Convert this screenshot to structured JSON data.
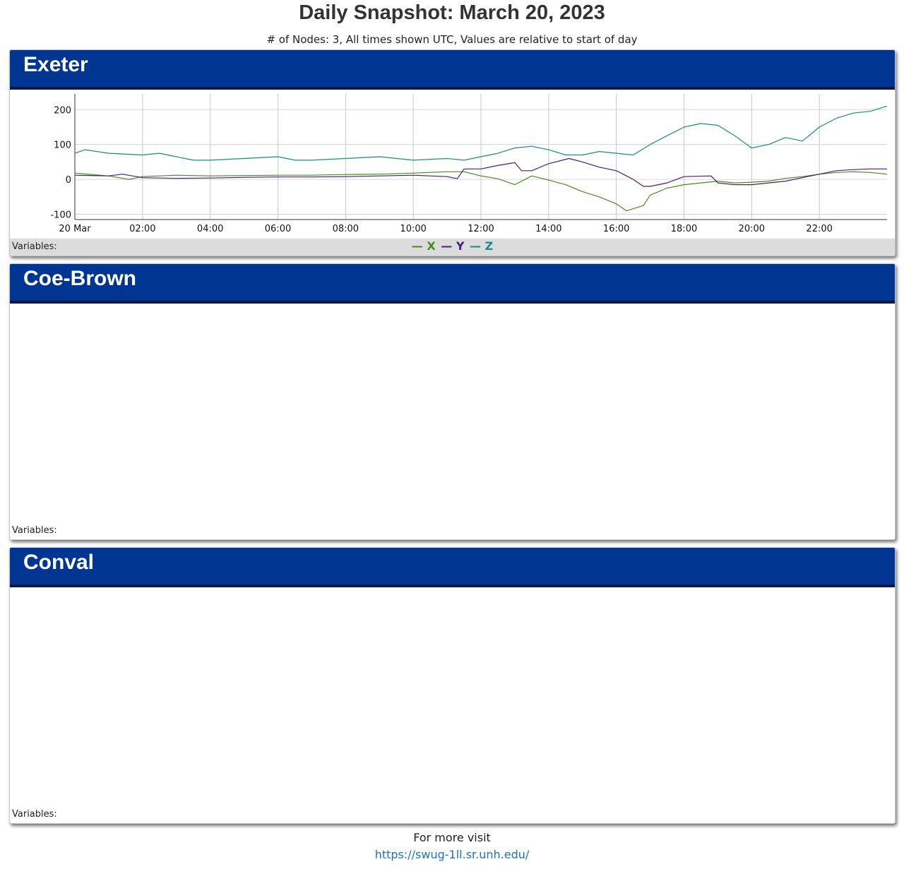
{
  "title": "Daily Snapshot: March 20, 2023",
  "subtitle": "# of Nodes: 3, All times shown UTC, Values are relative to start of day",
  "panels": [
    {
      "name": "Exeter",
      "variables_label": "Variables:"
    },
    {
      "name": "Coe-Brown",
      "variables_label": "Variables:"
    },
    {
      "name": "Conval",
      "variables_label": "Variables:"
    }
  ],
  "footer": {
    "text": "For more visit",
    "link": "https://swug-1ll.sr.unh.edu/"
  },
  "colors": {
    "header": "#003591",
    "X": "#4a8a1e",
    "Y": "#4b1b82",
    "Z": "#1a8a8a"
  },
  "chart_data": {
    "type": "line",
    "xlim": [
      0,
      24
    ],
    "ylim": [
      -115,
      245
    ],
    "x_tick_labels": [
      "20 Mar",
      "02:00",
      "04:00",
      "06:00",
      "08:00",
      "10:00",
      "12:00",
      "14:00",
      "16:00",
      "18:00",
      "20:00",
      "22:00"
    ],
    "x_tick_hours": [
      0,
      2,
      4,
      6,
      8,
      10,
      12,
      14,
      16,
      18,
      20,
      22
    ],
    "y_ticks": [
      200,
      100,
      0,
      -100
    ],
    "grid": true,
    "legend_position": "bottom-center",
    "series": [
      {
        "name": "X",
        "color": "#4a8a1e",
        "x": [
          0,
          0.5,
          1,
          1.6,
          2,
          3,
          4,
          5,
          6,
          7,
          8,
          9,
          10,
          11,
          11.5,
          12,
          12.5,
          13,
          13.5,
          14,
          14.5,
          15,
          15.5,
          16,
          16.3,
          16.8,
          17,
          17.5,
          18,
          18.5,
          19,
          19.5,
          20,
          20.5,
          21,
          21.5,
          22,
          22.5,
          23,
          23.5,
          24
        ],
        "y": [
          18,
          14,
          10,
          0,
          8,
          12,
          10,
          11,
          12,
          12,
          14,
          15,
          18,
          22,
          22,
          10,
          2,
          -15,
          10,
          -2,
          -15,
          -35,
          -50,
          -70,
          -90,
          -75,
          -45,
          -25,
          -15,
          -10,
          -5,
          -10,
          -8,
          -5,
          3,
          8,
          15,
          20,
          22,
          20,
          15
        ]
      },
      {
        "name": "Y",
        "color": "#4b1b82",
        "x": [
          0,
          1,
          1.4,
          2,
          3,
          4,
          5,
          6,
          7,
          8,
          9,
          10,
          11,
          11.3,
          11.5,
          12,
          12.5,
          13,
          13.2,
          13.5,
          14,
          14.6,
          15,
          15.5,
          16,
          16.5,
          16.8,
          17,
          17.5,
          18,
          18.8,
          19,
          19.5,
          20,
          21,
          22,
          22.5,
          23,
          23.5,
          24
        ],
        "y": [
          12,
          10,
          15,
          5,
          3,
          4,
          6,
          7,
          7,
          8,
          10,
          12,
          8,
          2,
          30,
          30,
          40,
          48,
          25,
          25,
          45,
          60,
          50,
          35,
          25,
          0,
          -20,
          -20,
          -10,
          8,
          10,
          -10,
          -15,
          -15,
          -5,
          15,
          25,
          28,
          30,
          30
        ]
      },
      {
        "name": "Z",
        "color": "#1a8a8a",
        "x": [
          0,
          0.3,
          1,
          2,
          2.5,
          3,
          3.5,
          4,
          5,
          6,
          6.5,
          7,
          8,
          9,
          10,
          11,
          11.5,
          12,
          12.5,
          13,
          13.5,
          14,
          14.5,
          15,
          15.5,
          16,
          16.5,
          17,
          17.5,
          18,
          18.5,
          19,
          19.5,
          20,
          20.5,
          21,
          21.5,
          22,
          22.5,
          23,
          23.5,
          24
        ],
        "y": [
          75,
          85,
          75,
          70,
          75,
          65,
          55,
          55,
          60,
          65,
          55,
          55,
          60,
          65,
          55,
          60,
          55,
          65,
          75,
          90,
          95,
          85,
          70,
          70,
          80,
          75,
          70,
          100,
          125,
          150,
          160,
          155,
          125,
          90,
          100,
          120,
          110,
          150,
          175,
          190,
          195,
          210
        ]
      }
    ]
  }
}
